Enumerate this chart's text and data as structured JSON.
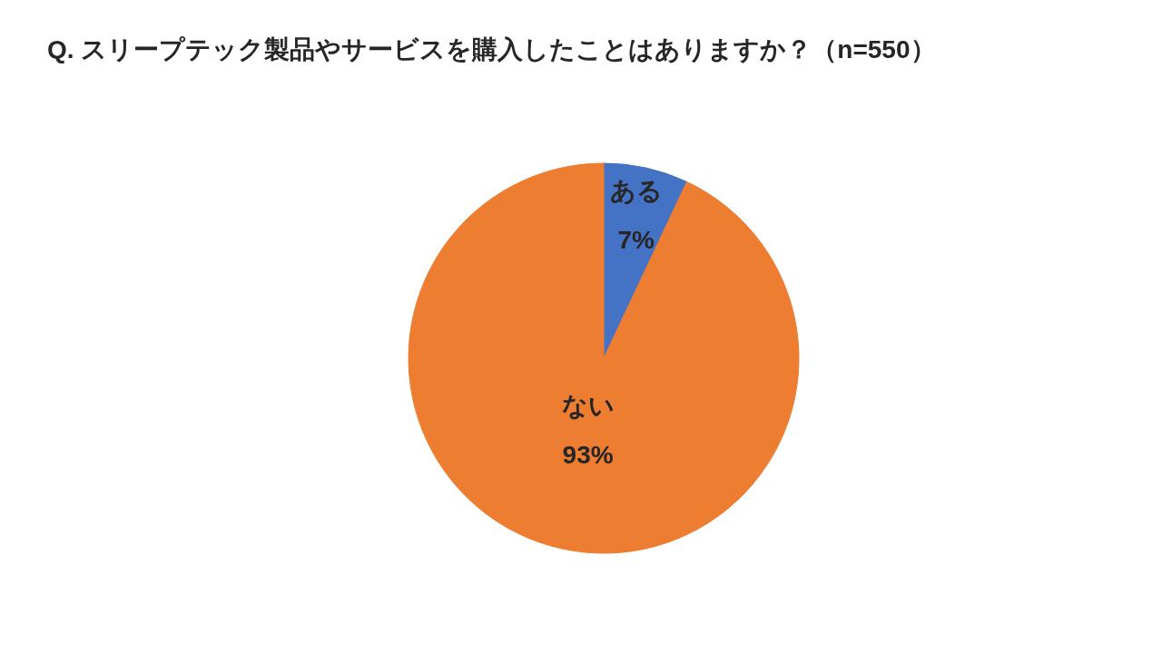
{
  "chart_data": {
    "type": "pie",
    "title": "Q. スリープテック製品やサービスを購入したことはありますか？（n=550）",
    "categories": [
      "ある",
      "ない"
    ],
    "values": [
      7,
      93
    ],
    "colors": [
      "#4472c4",
      "#ed7d31"
    ],
    "value_labels": [
      "7%",
      "93%"
    ]
  }
}
